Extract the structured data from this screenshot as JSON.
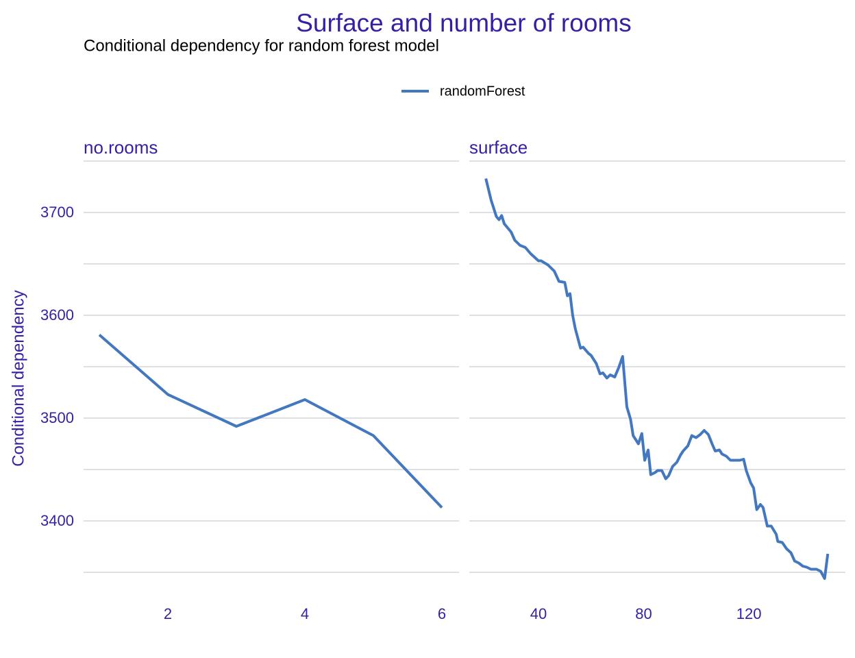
{
  "title": "Surface and number of rooms",
  "subtitle": "Conditional dependency for random forest model",
  "ylabel": "Conditional dependency",
  "legend": "top",
  "chart_data": [
    {
      "type": "line",
      "facet": "no.rooms",
      "x": [
        1,
        2,
        3,
        4,
        5,
        6
      ],
      "series": [
        {
          "name": "randomForest",
          "color": "#4378bf",
          "values": [
            3581,
            3523,
            3492,
            3518,
            3483,
            3413
          ]
        }
      ],
      "xlim": [
        0.77,
        6.25
      ],
      "xticks": [
        2,
        4,
        6
      ],
      "ylim": [
        3335,
        3750
      ],
      "yticks": [
        3400,
        3500,
        3600,
        3700
      ],
      "minor_yticks": [
        3350,
        3450,
        3550,
        3650,
        3750
      ],
      "grid": true
    },
    {
      "type": "line",
      "facet": "surface",
      "x": [
        20,
        22,
        24,
        25,
        26,
        27,
        29.6,
        31,
        33,
        35,
        37,
        40,
        41,
        43.6,
        46,
        47.8,
        50,
        51,
        52,
        53,
        54,
        56,
        57,
        59,
        60,
        62,
        63.4,
        64.5,
        66,
        67.3,
        69,
        70.5,
        72,
        73.6,
        75,
        76,
        78,
        79.3,
        80.4,
        81.7,
        82.7,
        84.3,
        85.3,
        86.9,
        88.4,
        89.5,
        91,
        92.6,
        94,
        95,
        96.8,
        98.3,
        99.9,
        101.5,
        103,
        104.6,
        106,
        107.2,
        108.8,
        109.8,
        111.4,
        113,
        114.5,
        116.6,
        118,
        119,
        120.7,
        121.8,
        123,
        124.4,
        125.4,
        127,
        128.5,
        130.4,
        131,
        132.7,
        134.3,
        136,
        137.4,
        139,
        140.5,
        142,
        143.6,
        145.7,
        147.3,
        148.8,
        150
      ],
      "series": [
        {
          "color": "#4378bf",
          "values": [
            3733,
            3712,
            3696,
            3693,
            3697,
            3689,
            3681,
            3673,
            3668,
            3666,
            3660,
            3653,
            3653,
            3649,
            3643,
            3633,
            3632,
            3619,
            3621,
            3600,
            3587,
            3568,
            3569,
            3563,
            3561,
            3553,
            3543,
            3544,
            3539,
            3542,
            3540,
            3549,
            3560,
            3511,
            3499,
            3483,
            3475,
            3485,
            3459,
            3469,
            3445,
            3447,
            3449,
            3449,
            3441,
            3444,
            3453,
            3457,
            3464,
            3468,
            3473,
            3483,
            3481,
            3484,
            3488,
            3484,
            3475,
            3468,
            3469,
            3465,
            3463,
            3459,
            3459,
            3459,
            3460,
            3449,
            3437,
            3432,
            3411,
            3416,
            3413,
            3395,
            3395,
            3387,
            3380,
            3379,
            3373,
            3369,
            3361,
            3359,
            3356,
            3355,
            3353,
            3353,
            3351,
            3344,
            3368
          ]
        }
      ],
      "xlim": [
        13.7,
        156.7
      ],
      "xticks": [
        40,
        80,
        120
      ],
      "ylim": [
        3335,
        3750
      ],
      "yticks": [
        3400,
        3500,
        3600,
        3700
      ],
      "minor_yticks": [
        3350,
        3450,
        3550,
        3650,
        3750
      ],
      "grid": true
    }
  ]
}
